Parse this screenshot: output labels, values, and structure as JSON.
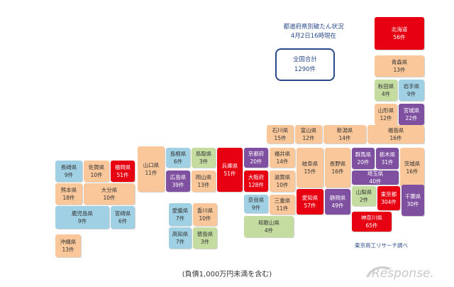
{
  "title_lines": [
    "都道府県別破たん状況",
    "4月2日16時現在"
  ],
  "total_label": "全国合計",
  "total_value": "1290件",
  "source": "東京商工リサーチ調べ",
  "note": "(負債1,000万円未満を含む)",
  "watermark": "Response.",
  "colors": {
    "red": "#e60012",
    "peach": "#f9c79a",
    "green": "#c4dca0",
    "blue": "#9fd0e4",
    "purple": "#7f4fa0",
    "lblue": "#bcd5ee"
  },
  "prefectures": [
    {
      "name": "北海道",
      "count": "56件",
      "color": "red"
    },
    {
      "name": "青森県",
      "count": "13件",
      "color": "peach"
    },
    {
      "name": "秋田県",
      "count": "4件",
      "color": "green"
    },
    {
      "name": "岩手県",
      "count": "9件",
      "color": "blue"
    },
    {
      "name": "山形県",
      "count": "12件",
      "color": "peach"
    },
    {
      "name": "宮城県",
      "count": "22件",
      "color": "purple"
    },
    {
      "name": "石川県",
      "count": "15件",
      "color": "peach"
    },
    {
      "name": "富山県",
      "count": "12件",
      "color": "peach"
    },
    {
      "name": "新潟県",
      "count": "14件",
      "color": "peach"
    },
    {
      "name": "福島県",
      "count": "16件",
      "color": "peach"
    },
    {
      "name": "京都府",
      "count": "20件",
      "color": "purple"
    },
    {
      "name": "福井県",
      "count": "14件",
      "color": "peach"
    },
    {
      "name": "岐阜県",
      "count": "15件",
      "color": "peach"
    },
    {
      "name": "長野県",
      "count": "16件",
      "color": "peach"
    },
    {
      "name": "群馬県",
      "count": "20件",
      "color": "purple"
    },
    {
      "name": "栃木県",
      "count": "31件",
      "color": "purple"
    },
    {
      "name": "茨城県",
      "count": "16件",
      "color": "peach"
    },
    {
      "name": "埼玉県",
      "count": "40件",
      "color": "purple"
    },
    {
      "name": "大阪府",
      "count": "128件",
      "color": "red"
    },
    {
      "name": "滋賀県",
      "count": "10件",
      "color": "peach"
    },
    {
      "name": "愛知県",
      "count": "57件",
      "color": "red"
    },
    {
      "name": "静岡県",
      "count": "49件",
      "color": "purple"
    },
    {
      "name": "山梨県",
      "count": "2件",
      "color": "green"
    },
    {
      "name": "東京都",
      "count": "304件",
      "color": "red"
    },
    {
      "name": "千葉県",
      "count": "30件",
      "color": "purple"
    },
    {
      "name": "奈良県",
      "count": "9件",
      "color": "blue"
    },
    {
      "name": "三重県",
      "count": "11件",
      "color": "peach"
    },
    {
      "name": "神奈川県",
      "count": "65件",
      "color": "red"
    },
    {
      "name": "和歌山県",
      "count": "4件",
      "color": "green"
    },
    {
      "name": "兵庫県",
      "count": "51件",
      "color": "red"
    },
    {
      "name": "鳥取県",
      "count": "3件",
      "color": "green"
    },
    {
      "name": "島根県",
      "count": "6件",
      "color": "blue"
    },
    {
      "name": "山口県",
      "count": "11件",
      "color": "peach"
    },
    {
      "name": "広島県",
      "count": "39件",
      "color": "purple"
    },
    {
      "name": "岡山県",
      "count": "13件",
      "color": "peach"
    },
    {
      "name": "愛媛県",
      "count": "7件",
      "color": "blue"
    },
    {
      "name": "香川県",
      "count": "10件",
      "color": "peach"
    },
    {
      "name": "高知県",
      "count": "7件",
      "color": "blue"
    },
    {
      "name": "徳島県",
      "count": "3件",
      "color": "green"
    },
    {
      "name": "長崎県",
      "count": "9件",
      "color": "blue"
    },
    {
      "name": "佐賀県",
      "count": "10件",
      "color": "peach"
    },
    {
      "name": "福岡県",
      "count": "51件",
      "color": "red"
    },
    {
      "name": "熊本県",
      "count": "18件",
      "color": "peach"
    },
    {
      "name": "大分県",
      "count": "10件",
      "color": "peach"
    },
    {
      "name": "鹿児島県",
      "count": "9件",
      "color": "blue"
    },
    {
      "name": "宮崎県",
      "count": "6件",
      "color": "blue"
    },
    {
      "name": "沖縄県",
      "count": "13件",
      "color": "peach"
    }
  ]
}
